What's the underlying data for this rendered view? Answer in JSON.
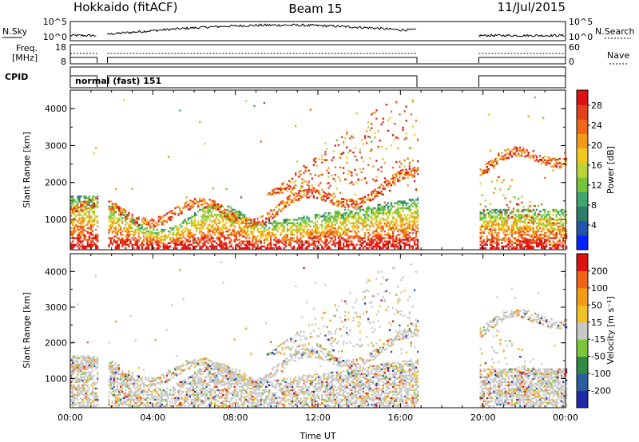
{
  "header": {
    "station": "Hokkaido (fitACF)",
    "beam": "Beam 15",
    "date": "11/Jul/2015"
  },
  "panels": {
    "nsky": {
      "left_label": "N.Sky",
      "right_label": "N.Search",
      "left_ticks": [
        "10^5",
        "10^0"
      ],
      "right_ticks": [
        "10^5",
        "10^0"
      ]
    },
    "freq": {
      "left_label_top": "Freq.",
      "left_label_bottom": "[MHz]",
      "left_ticks": [
        "18",
        "8"
      ],
      "right_label": "Nave",
      "right_ticks": [
        "60",
        "0"
      ]
    },
    "cpid": {
      "label": "CPID",
      "text": "normal (fast) 151"
    }
  },
  "chart_data": [
    {
      "type": "heatmap",
      "name": "power",
      "ylabel": "Slant Range [km]",
      "yticks": [
        "4000",
        "3000",
        "2000",
        "1000"
      ],
      "ylim": [
        180,
        4500
      ],
      "colorbar_label": "Power [dB]",
      "colorbar_ticks": [
        "28",
        "24",
        "20",
        "16",
        "12",
        "8",
        "4"
      ],
      "colors": [
        "#0022ff",
        "#2255aa",
        "#2e7d6b",
        "#3fa66e",
        "#77c43a",
        "#b8d437",
        "#f0c81e",
        "#f29b17",
        "#f06818",
        "#e3401c",
        "#dd1111"
      ],
      "xticks": [
        "00:00",
        "04:00",
        "08:00",
        "12:00",
        "16:00",
        "20:00",
        "00:00"
      ],
      "xlim": [
        0,
        24
      ],
      "data_gaps_hours": [
        [
          1.3,
          1.8
        ],
        [
          16.8,
          19.8
        ]
      ]
    },
    {
      "type": "heatmap",
      "name": "velocity",
      "ylabel": "Slant Range [km]",
      "yticks": [
        "4000",
        "3000",
        "2000",
        "1000"
      ],
      "ylim": [
        180,
        4500
      ],
      "colorbar_label": "Velocity [m s⁻¹]",
      "colorbar_ticks": [
        "200",
        "100",
        "50",
        "15",
        "-15",
        "-50",
        "-100",
        "-200"
      ],
      "colors": [
        "#1f2aa8",
        "#2b5e9e",
        "#2f8a44",
        "#7cc63c",
        "#c8c8c8",
        "#f2c224",
        "#f39a17",
        "#f06318",
        "#dd1111"
      ],
      "xlabel": "Time UT",
      "xticks": [
        "00:00",
        "04:00",
        "08:00",
        "12:00",
        "16:00",
        "20:00",
        "00:00"
      ],
      "xlim": [
        0,
        24
      ],
      "data_gaps_hours": [
        [
          1.3,
          1.8
        ],
        [
          16.8,
          19.8
        ]
      ]
    }
  ]
}
